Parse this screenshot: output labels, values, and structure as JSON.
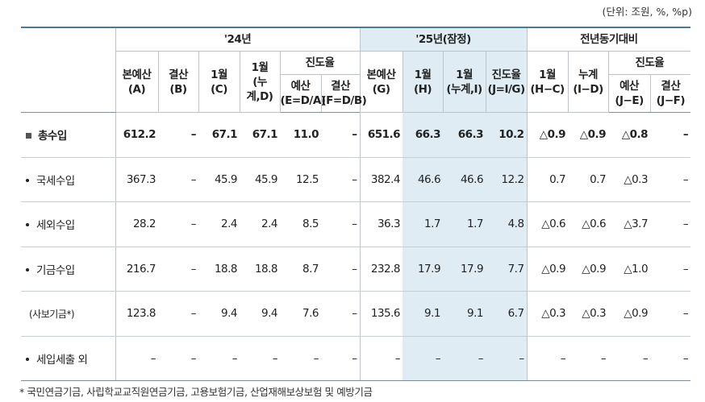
{
  "unit_note": "(단위: 조원, %, %p)",
  "headers": {
    "group_24": "'24년",
    "group_25": "'25년(잠정)",
    "group_yoy": "전년동기대비",
    "progress_24": "진도율",
    "progress_yoy": "진도율",
    "cols": {
      "a": [
        "본예산",
        "(A)"
      ],
      "b": [
        "결산",
        "(B)"
      ],
      "c": [
        "1월",
        "(C)"
      ],
      "d": [
        "1월",
        "(누계,D)"
      ],
      "e": [
        "예산",
        "(E=D/A)"
      ],
      "f": [
        "결산",
        "(F=D/B)"
      ],
      "g": [
        "본예산",
        "(G)"
      ],
      "h": [
        "1월",
        "(H)"
      ],
      "i": [
        "1월",
        "(누계,I)"
      ],
      "j": [
        "진도율",
        "(J=I/G)"
      ],
      "hc": [
        "1월",
        "(H−C)"
      ],
      "id": [
        "누계",
        "(I−D)"
      ],
      "je": [
        "예산",
        "(J−E)"
      ],
      "jf": [
        "결산",
        "(J−F)"
      ]
    }
  },
  "rows": [
    {
      "label": "총수입",
      "values": [
        "612.2",
        "–",
        "67.1",
        "67.1",
        "11.0",
        "–",
        "651.6",
        "66.3",
        "66.3",
        "10.2",
        "△0.9",
        "△0.9",
        "△0.8",
        "–"
      ]
    },
    {
      "label": "국세수입",
      "values": [
        "367.3",
        "–",
        "45.9",
        "45.9",
        "12.5",
        "–",
        "382.4",
        "46.6",
        "46.6",
        "12.2",
        "0.7",
        "0.7",
        "△0.3",
        "–"
      ]
    },
    {
      "label": "세외수입",
      "values": [
        "28.2",
        "–",
        "2.4",
        "2.4",
        "8.5",
        "–",
        "36.3",
        "1.7",
        "1.7",
        "4.8",
        "△0.6",
        "△0.6",
        "△3.7",
        "–"
      ]
    },
    {
      "label": "기금수입",
      "values": [
        "216.7",
        "–",
        "18.8",
        "18.8",
        "8.7",
        "–",
        "232.8",
        "17.9",
        "17.9",
        "7.7",
        "△0.9",
        "△0.9",
        "△1.0",
        "–"
      ]
    },
    {
      "label": "(사보기금*)",
      "values": [
        "123.8",
        "–",
        "9.4",
        "9.4",
        "7.6",
        "–",
        "135.6",
        "9.1",
        "9.1",
        "6.7",
        "△0.3",
        "△0.3",
        "△0.9",
        "–"
      ]
    },
    {
      "label": "세입세출 외",
      "values": [
        "–",
        "–",
        "–",
        "–",
        "–",
        "–",
        "–",
        "–",
        "–",
        "–",
        "–",
        "–",
        "–",
        "–"
      ]
    }
  ],
  "footnote": "* 국민연금기금, 사립학교교직원연금기금, 고용보험기금, 산업재해보상보험 및 예방기금"
}
